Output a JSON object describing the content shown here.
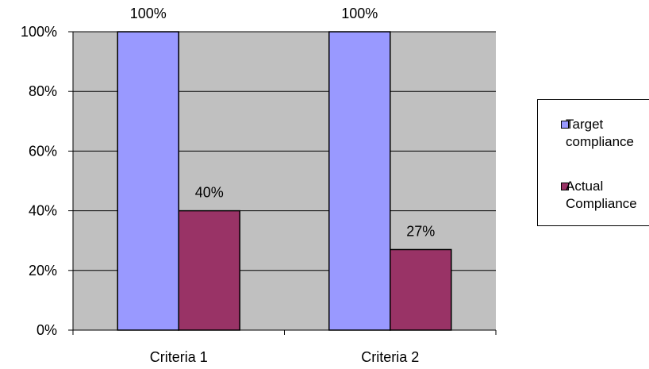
{
  "chart_data": {
    "type": "bar",
    "title": "",
    "xlabel": "",
    "ylabel": "",
    "categories": [
      "Criteria 1",
      "Criteria 2"
    ],
    "series": [
      {
        "name": "Target compliance",
        "name_lines": [
          "Target",
          "compliance"
        ],
        "values": [
          100,
          100
        ],
        "labels": [
          "100%",
          "100%"
        ],
        "color": "#9999ff"
      },
      {
        "name": "Actual Compliance",
        "name_lines": [
          "Actual",
          "Compliance"
        ],
        "values": [
          40,
          27
        ],
        "labels": [
          "40%",
          "27%"
        ],
        "color": "#993366"
      }
    ],
    "ylim": [
      0,
      100
    ],
    "yticks": [
      0,
      20,
      40,
      60,
      80,
      100
    ],
    "ytick_labels": [
      "0%",
      "20%",
      "40%",
      "60%",
      "80%",
      "100%"
    ],
    "grid": true,
    "plot_background": "#c0c0c0",
    "legend_position": "right"
  }
}
